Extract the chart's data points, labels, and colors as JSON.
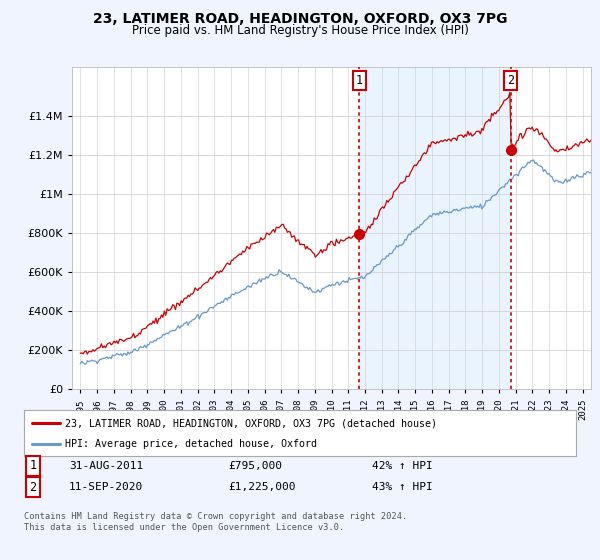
{
  "title": "23, LATIMER ROAD, HEADINGTON, OXFORD, OX3 7PG",
  "subtitle": "Price paid vs. HM Land Registry's House Price Index (HPI)",
  "legend_property": "23, LATIMER ROAD, HEADINGTON, OXFORD, OX3 7PG (detached house)",
  "legend_hpi": "HPI: Average price, detached house, Oxford",
  "transaction1_date": "31-AUG-2011",
  "transaction1_price": "£795,000",
  "transaction1_hpi": "42% ↑ HPI",
  "transaction2_date": "11-SEP-2020",
  "transaction2_price": "£1,225,000",
  "transaction2_hpi": "43% ↑ HPI",
  "footer": "Contains HM Land Registry data © Crown copyright and database right 2024.\nThis data is licensed under the Open Government Licence v3.0.",
  "property_color": "#cc0000",
  "hpi_color": "#6699cc",
  "hpi_fill_color": "#ddeeff",
  "background_color": "#f0f4ff",
  "plot_bg_color": "#ffffff",
  "grid_color": "#cccccc",
  "ylim": [
    0,
    1650000
  ],
  "yticks": [
    0,
    200000,
    400000,
    600000,
    800000,
    1000000,
    1200000,
    1400000
  ],
  "transaction1_x": 2011.67,
  "transaction2_x": 2020.7,
  "marker1_y": 795000,
  "marker2_y": 1225000,
  "vline_color": "#cc0000",
  "marker_color": "#cc0000",
  "num_box_color": "#ffffff",
  "num_box_edge": "#cc0000",
  "xlim_left": 1994.5,
  "xlim_right": 2025.5
}
